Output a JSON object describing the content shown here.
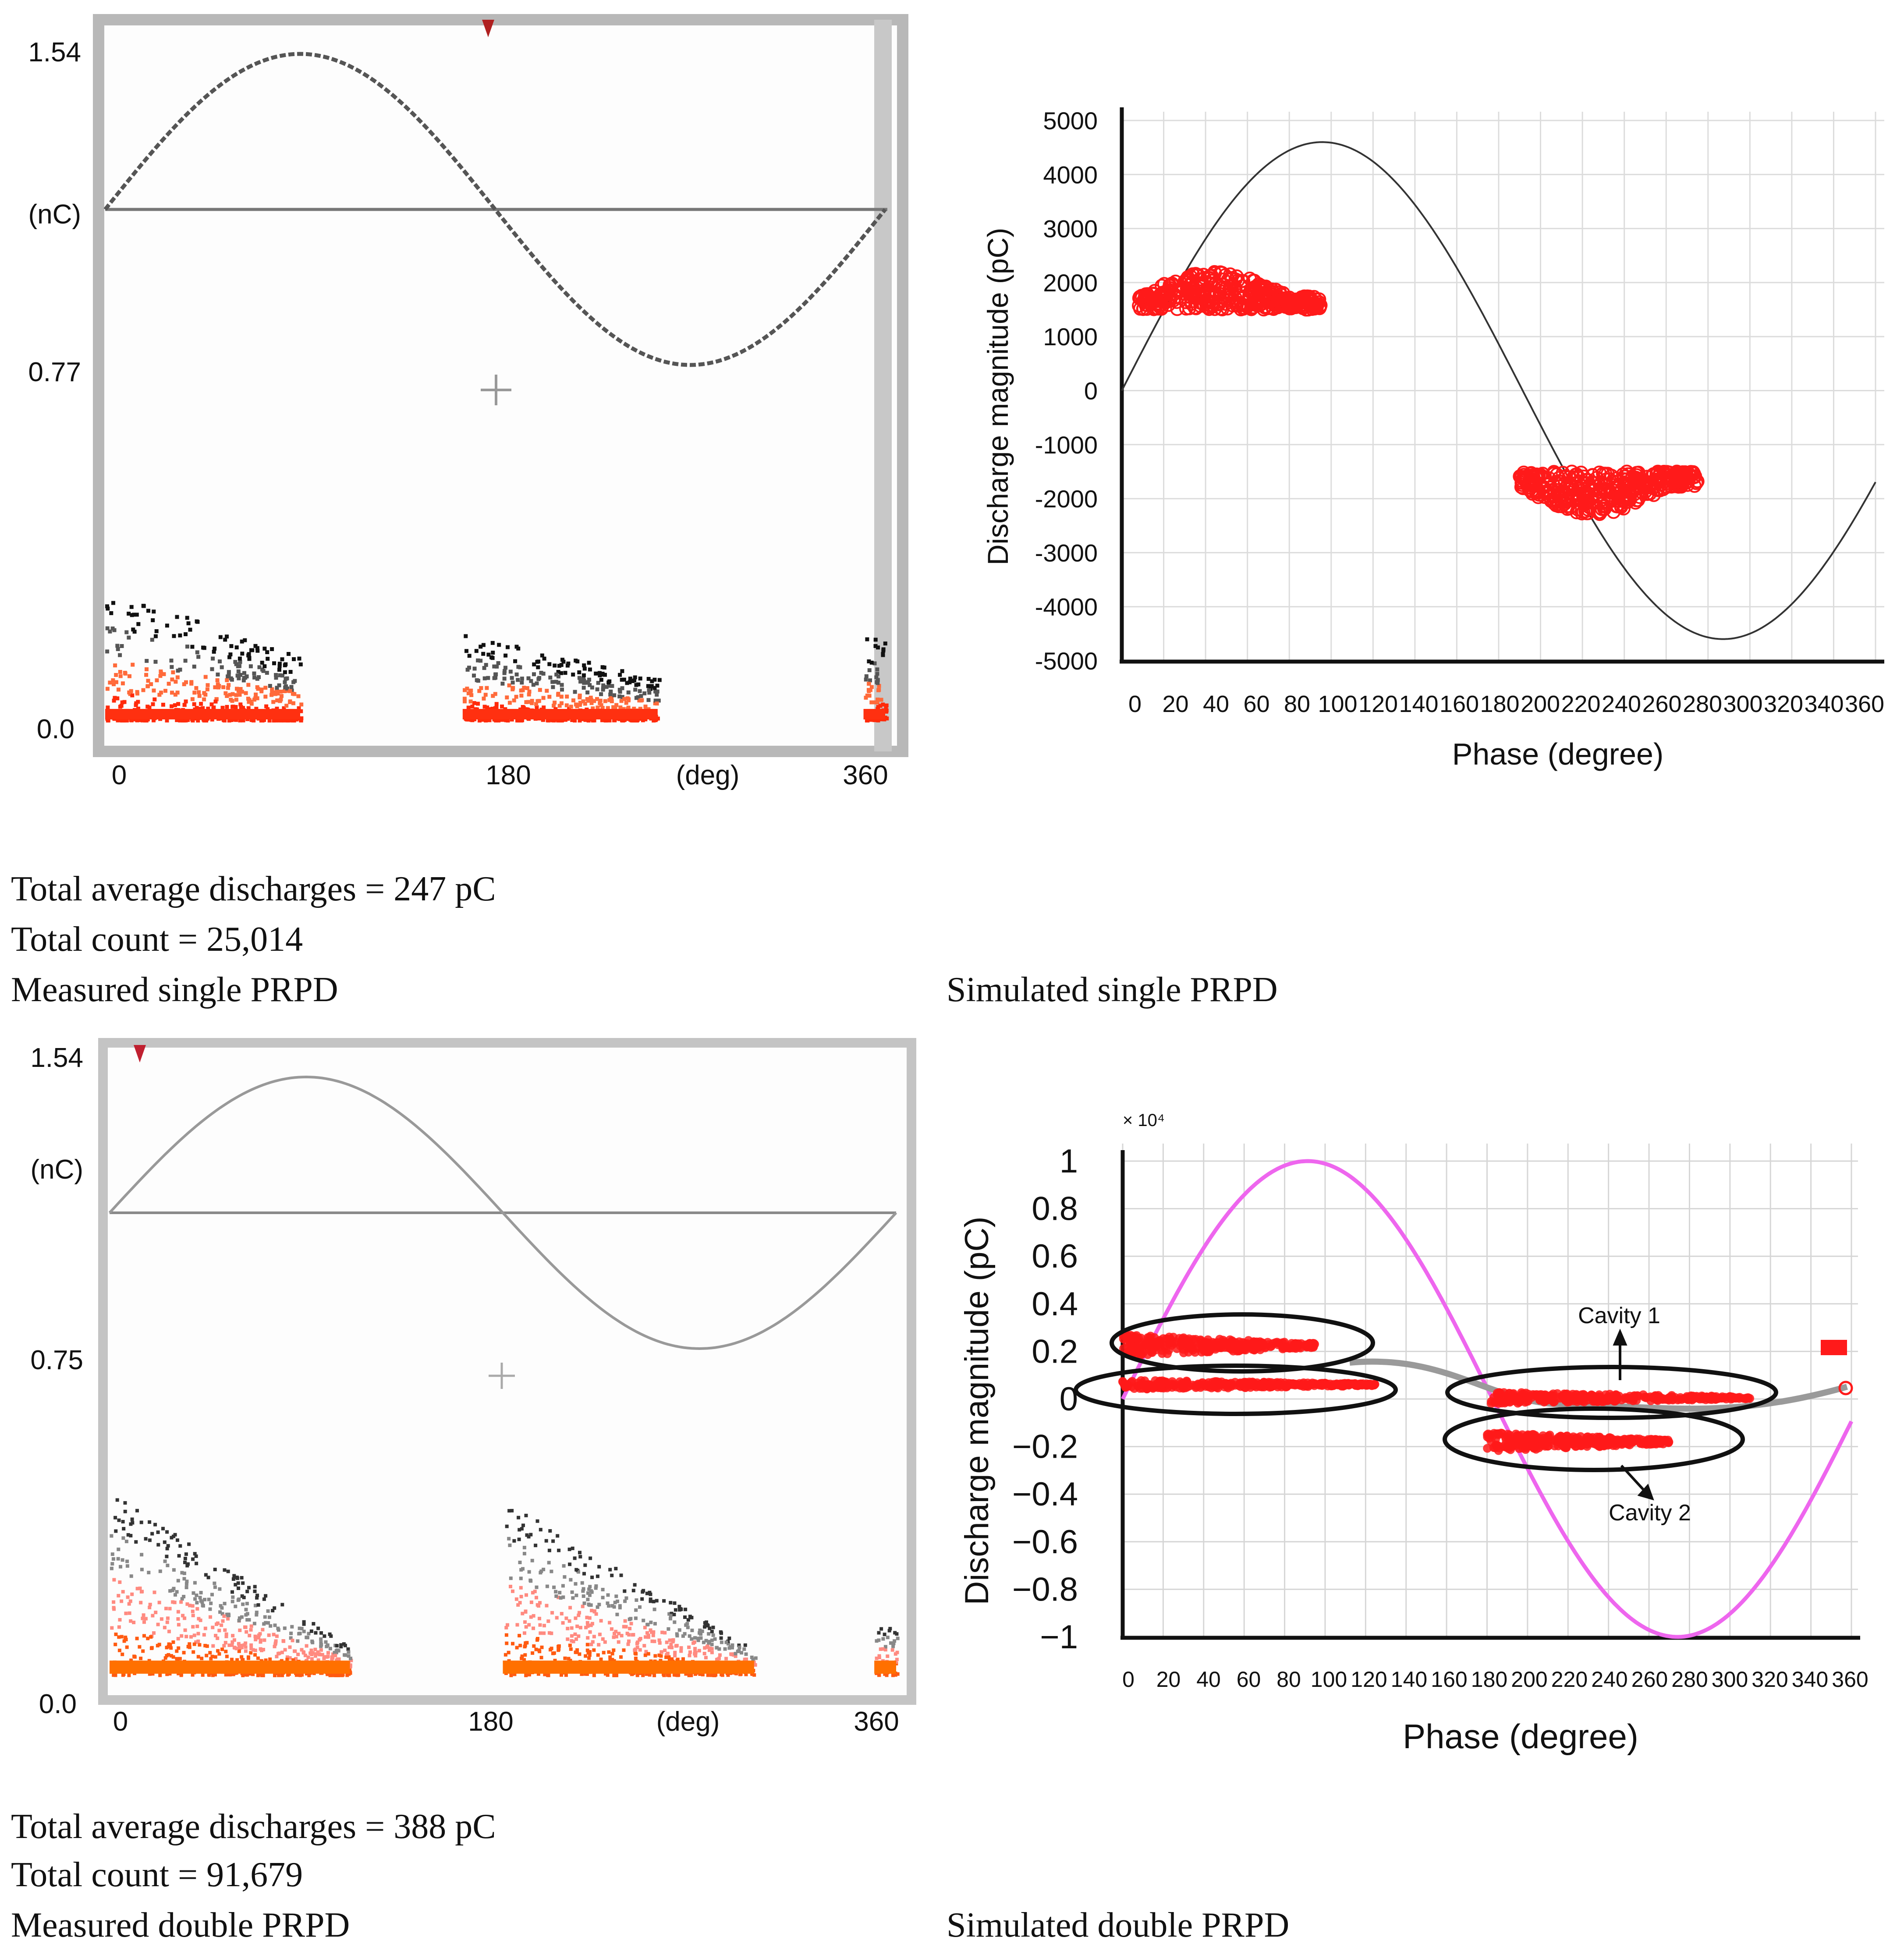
{
  "chart_data": [
    {
      "id": "measured_single",
      "type": "scatter",
      "title": "",
      "xlabel": "(deg)",
      "ylabel": "(nC)",
      "xlim": [
        0,
        360
      ],
      "ylim": [
        0.0,
        1.54
      ],
      "x_ticks": [
        "0",
        "180",
        "(deg)",
        "360"
      ],
      "y_ticks": [
        "1.54",
        "(nC)",
        "0.77",
        "0.0"
      ],
      "reference_sine": {
        "offset": 1.15,
        "amplitude": 0.35
      },
      "series": [
        {
          "name": "discharges phase 1",
          "x_range": [
            0,
            90
          ],
          "y_peak": 0.3
        },
        {
          "name": "discharges phase 2",
          "x_range": [
            165,
            255
          ],
          "y_peak": 0.2
        },
        {
          "name": "discharges phase 3",
          "x_range": [
            350,
            360
          ],
          "y_peak": 0.18
        }
      ],
      "caption_lines": [
        "Total average discharges = 247 pC",
        "Total count = 25,014",
        "Measured single PRPD"
      ]
    },
    {
      "id": "simulated_single",
      "type": "scatter",
      "title": "",
      "xlabel": "Phase (degree)",
      "ylabel": "Discharge magnitude (pC)",
      "xlim": [
        0,
        360
      ],
      "ylim": [
        -5000,
        5000
      ],
      "x_ticks": [
        "0",
        "20",
        "40",
        "60",
        "80",
        "100",
        "120",
        "140",
        "160",
        "180",
        "200",
        "220",
        "240",
        "260",
        "280",
        "300",
        "320",
        "340",
        "360"
      ],
      "y_ticks": [
        "5000",
        "4000",
        "3000",
        "2000",
        "1000",
        "0",
        "-1000",
        "-2000",
        "-3000",
        "-4000",
        "-5000"
      ],
      "reference_sine": {
        "amplitude": 4600
      },
      "series": [
        {
          "name": "positive discharges",
          "x_range": [
            8,
            95
          ],
          "y_range": [
            1500,
            2200
          ]
        },
        {
          "name": "negative discharges",
          "x_range": [
            190,
            275
          ],
          "y_range": [
            -2300,
            -1500
          ]
        }
      ],
      "caption_lines": [
        "Simulated single PRPD"
      ]
    },
    {
      "id": "measured_double",
      "type": "scatter",
      "title": "",
      "xlabel": "(deg)",
      "ylabel": "(nC)",
      "xlim": [
        0,
        360
      ],
      "ylim": [
        0.0,
        1.54
      ],
      "x_ticks": [
        "0",
        "180",
        "(deg)",
        "360"
      ],
      "y_ticks": [
        "1.54",
        "(nC)",
        "0.75",
        "0.0"
      ],
      "reference_sine": {
        "offset": 1.15,
        "amplitude": 0.35
      },
      "series": [
        {
          "name": "discharges phase 1",
          "x_range": [
            0,
            110
          ],
          "y_peak": 0.45
        },
        {
          "name": "discharges phase 2",
          "x_range": [
            180,
            295
          ],
          "y_peak": 0.43
        },
        {
          "name": "discharges phase 3",
          "x_range": [
            350,
            360
          ],
          "y_peak": 0.12
        }
      ],
      "caption_lines": [
        "Total average discharges = 388 pC",
        "Total count = 91,679",
        "Measured double PRPD"
      ]
    },
    {
      "id": "simulated_double",
      "type": "scatter",
      "title": "",
      "xlabel": "Phase (degree)",
      "ylabel": "Discharge magnitude (pC)",
      "y_multiplier": "× 10⁴",
      "xlim": [
        0,
        360
      ],
      "ylim": [
        -1,
        1
      ],
      "x_ticks": [
        "0",
        "20",
        "40",
        "60",
        "80",
        "100",
        "120",
        "140",
        "160",
        "180",
        "200",
        "220",
        "240",
        "260",
        "280",
        "300",
        "320",
        "340",
        "360"
      ],
      "y_ticks": [
        "1",
        "0.8",
        "0.6",
        "0.4",
        "0.2",
        "0",
        "−0.2",
        "−0.4",
        "−0.6",
        "−0.8",
        "−1"
      ],
      "reference_sine": {
        "amplitude": 1.0
      },
      "annotations": [
        "Cavity 1",
        "Cavity 2"
      ],
      "series": [
        {
          "name": "cavity 1 positive",
          "x_range": [
            0,
            95
          ],
          "y_range": [
            0.18,
            0.27
          ]
        },
        {
          "name": "cavity 2 positive",
          "x_range": [
            0,
            125
          ],
          "y_range": [
            0.04,
            0.08
          ]
        },
        {
          "name": "cavity 1 negative",
          "x_range": [
            180,
            310
          ],
          "y_range": [
            -0.02,
            0.03
          ]
        },
        {
          "name": "cavity 2 negative",
          "x_range": [
            180,
            270
          ],
          "y_range": [
            -0.22,
            -0.14
          ]
        }
      ],
      "caption_lines": [
        "Simulated double PRPD"
      ]
    }
  ]
}
